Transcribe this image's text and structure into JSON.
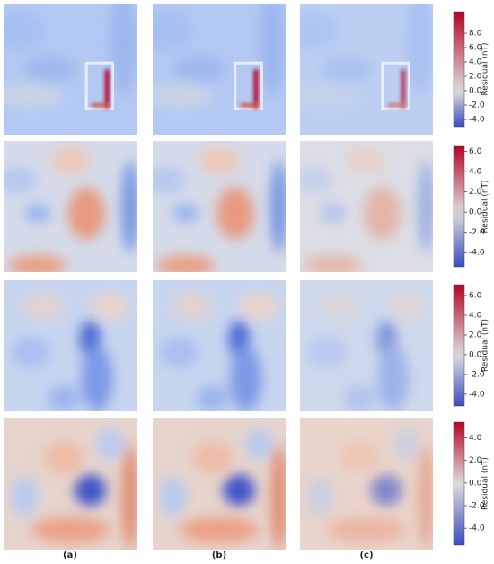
{
  "column_labels": [
    "(a)",
    "(b)",
    "(c)"
  ],
  "colorbars": [
    {
      "label": "Residual (nT)",
      "lim": [
        -5,
        11
      ],
      "ticks": [
        {
          "value": -4,
          "label": "-4.0"
        },
        {
          "value": -2,
          "label": "-2.0"
        },
        {
          "value": 0,
          "label": "0.0"
        },
        {
          "value": 2,
          "label": "2.0"
        },
        {
          "value": 4,
          "label": "4.0"
        },
        {
          "value": 6,
          "label": "6.0"
        },
        {
          "value": 8,
          "label": "8.0"
        }
      ]
    },
    {
      "label": "Residual (nT)",
      "lim": [
        -5.4,
        6.5
      ],
      "ticks": [
        {
          "value": -4,
          "label": "-4.0"
        },
        {
          "value": -2,
          "label": "-2.0"
        },
        {
          "value": 0,
          "label": "0.0"
        },
        {
          "value": 2,
          "label": "2.0"
        },
        {
          "value": 4,
          "label": "4.0"
        },
        {
          "value": 6,
          "label": "6.0"
        }
      ]
    },
    {
      "label": "Residual (nT)",
      "lim": [
        -5.2,
        7.1
      ],
      "ticks": [
        {
          "value": -4,
          "label": "-4.0"
        },
        {
          "value": -2,
          "label": "-2.0"
        },
        {
          "value": 0,
          "label": "0.0"
        },
        {
          "value": 2,
          "label": "2.0"
        },
        {
          "value": 4,
          "label": "4.0"
        },
        {
          "value": 6,
          "label": "6.0"
        }
      ]
    },
    {
      "label": "Residual (nT)",
      "lim": [
        -5.5,
        5.4
      ],
      "ticks": [
        {
          "value": -4,
          "label": "-4.0"
        },
        {
          "value": -2,
          "label": "-2.0"
        },
        {
          "value": 0,
          "label": "0.0"
        },
        {
          "value": 2,
          "label": "2.0"
        },
        {
          "value": 4,
          "label": "4.0"
        }
      ]
    }
  ]
}
